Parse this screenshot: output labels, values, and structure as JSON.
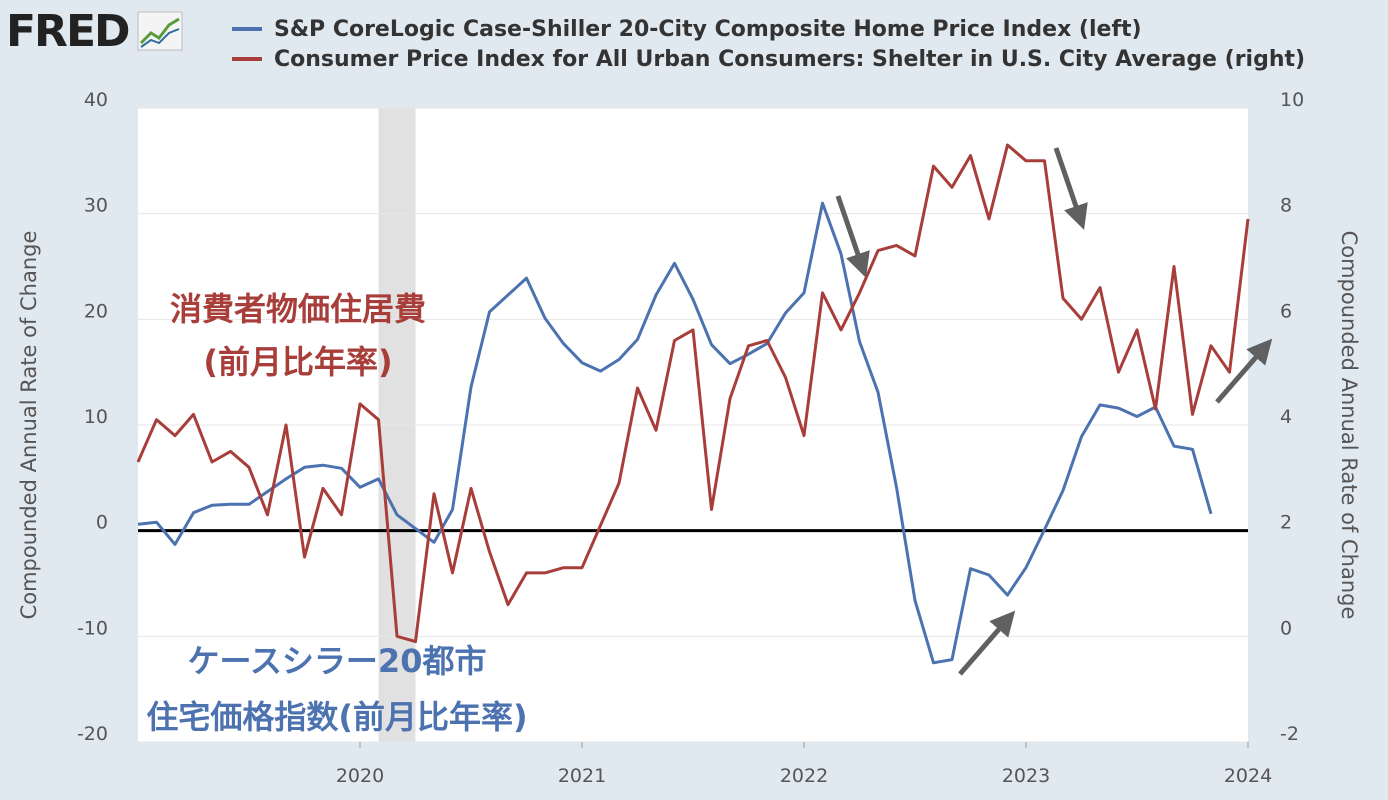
{
  "logo": {
    "text": "FRED"
  },
  "colors": {
    "series1": "#4c72b0",
    "series2": "#a83e3a",
    "background": "#e1e9f0",
    "plot_bg": "#ffffff",
    "recession": "#e1e1e1",
    "arrow": "#606060"
  },
  "chart_data": {
    "type": "line",
    "legend_placement": "top",
    "grid": true,
    "series": [
      {
        "name": "S&P CoreLogic Case-Shiller 20-City Composite Home Price Index (left)",
        "axis": "left",
        "x": [
          "2019-01",
          "2019-02",
          "2019-03",
          "2019-04",
          "2019-05",
          "2019-06",
          "2019-07",
          "2019-08",
          "2019-09",
          "2019-10",
          "2019-11",
          "2019-12",
          "2020-01",
          "2020-02",
          "2020-03",
          "2020-04",
          "2020-05",
          "2020-06",
          "2020-07",
          "2020-08",
          "2020-09",
          "2020-10",
          "2020-11",
          "2020-12",
          "2021-01",
          "2021-02",
          "2021-03",
          "2021-04",
          "2021-05",
          "2021-06",
          "2021-07",
          "2021-08",
          "2021-09",
          "2021-10",
          "2021-11",
          "2021-12",
          "2022-01",
          "2022-02",
          "2022-03",
          "2022-04",
          "2022-05",
          "2022-06",
          "2022-07",
          "2022-08",
          "2022-09",
          "2022-10",
          "2022-11",
          "2022-12",
          "2023-01",
          "2023-02",
          "2023-03",
          "2023-04",
          "2023-05",
          "2023-06",
          "2023-07",
          "2023-08",
          "2023-09",
          "2023-10",
          "2023-11"
        ],
        "values": [
          0.6,
          0.8,
          -1.3,
          1.7,
          2.4,
          2.5,
          2.5,
          3.7,
          4.9,
          6.0,
          6.2,
          5.9,
          4.1,
          4.9,
          1.5,
          0.2,
          -1.1,
          2.0,
          13.6,
          20.7,
          22.3,
          23.9,
          20.1,
          17.7,
          15.9,
          15.1,
          16.2,
          18.1,
          22.3,
          25.3,
          21.9,
          17.6,
          15.8,
          16.7,
          17.7,
          20.6,
          22.5,
          31.0,
          26.2,
          17.9,
          13.1,
          4.1,
          -6.6,
          -12.5,
          -12.2,
          -3.6,
          -4.2,
          -6.1,
          -3.5,
          0.1,
          3.8,
          8.9,
          11.9,
          11.6,
          10.8,
          11.7,
          8.0,
          7.7,
          1.6
        ]
      },
      {
        "name": "Consumer Price Index for All Urban Consumers: Shelter in U.S. City Average (right)",
        "axis": "right",
        "x": [
          "2019-01",
          "2019-02",
          "2019-03",
          "2019-04",
          "2019-05",
          "2019-06",
          "2019-07",
          "2019-08",
          "2019-09",
          "2019-10",
          "2019-11",
          "2019-12",
          "2020-01",
          "2020-02",
          "2020-03",
          "2020-04",
          "2020-05",
          "2020-06",
          "2020-07",
          "2020-08",
          "2020-09",
          "2020-10",
          "2020-11",
          "2020-12",
          "2021-01",
          "2021-02",
          "2021-03",
          "2021-04",
          "2021-05",
          "2021-06",
          "2021-07",
          "2021-08",
          "2021-09",
          "2021-10",
          "2021-11",
          "2021-12",
          "2022-01",
          "2022-02",
          "2022-03",
          "2022-04",
          "2022-05",
          "2022-06",
          "2022-07",
          "2022-08",
          "2022-09",
          "2022-10",
          "2022-11",
          "2022-12",
          "2023-01",
          "2023-02",
          "2023-03",
          "2023-04",
          "2023-05",
          "2023-06",
          "2023-07",
          "2023-08",
          "2023-09",
          "2023-10",
          "2023-11",
          "2023-12",
          "2024-01"
        ],
        "values": [
          3.3,
          4.1,
          3.8,
          4.2,
          3.3,
          3.5,
          3.2,
          2.3,
          4.0,
          1.5,
          2.8,
          2.3,
          4.4,
          4.1,
          0,
          -0.1,
          2.7,
          1.2,
          2.8,
          1.6,
          0.6,
          1.2,
          1.2,
          1.3,
          1.3,
          2.1,
          2.9,
          4.7,
          3.9,
          5.6,
          5.8,
          2.4,
          4.5,
          5.5,
          5.6,
          4.9,
          3.8,
          6.5,
          5.8,
          6.5,
          7.3,
          7.4,
          7.2,
          8.9,
          8.5,
          9.1,
          7.9,
          9.3,
          9.0,
          9.0,
          6.4,
          6.0,
          6.6,
          5.0,
          5.8,
          4.3,
          7.0,
          4.2,
          5.5,
          5.0,
          7.9
        ]
      }
    ],
    "left_axis": {
      "title": "Compounded Annual Rate of Change",
      "ylim": [
        -20,
        40
      ],
      "ticks": [
        "40",
        "30",
        "20",
        "10",
        "0",
        "-10",
        "-20"
      ]
    },
    "right_axis": {
      "title": "Compounded Annual Rate of Change",
      "ylim": [
        -2,
        10
      ],
      "ticks": [
        "10",
        "8",
        "6",
        "4",
        "2",
        "0",
        "-2"
      ]
    },
    "x_axis": {
      "range": [
        "2019-01",
        "2024-01"
      ],
      "ticks": [
        "2020",
        "2021",
        "2022",
        "2023",
        "2024"
      ]
    },
    "recession": [
      "2020-02",
      "2020-04"
    ],
    "annotations": {
      "shelter_line1": "消費者物価住居費",
      "shelter_line2": "(前月比年率)",
      "cs_line1": "ケースシラー20都市",
      "cs_line2": "住宅価格指数(前月比年率)"
    }
  }
}
